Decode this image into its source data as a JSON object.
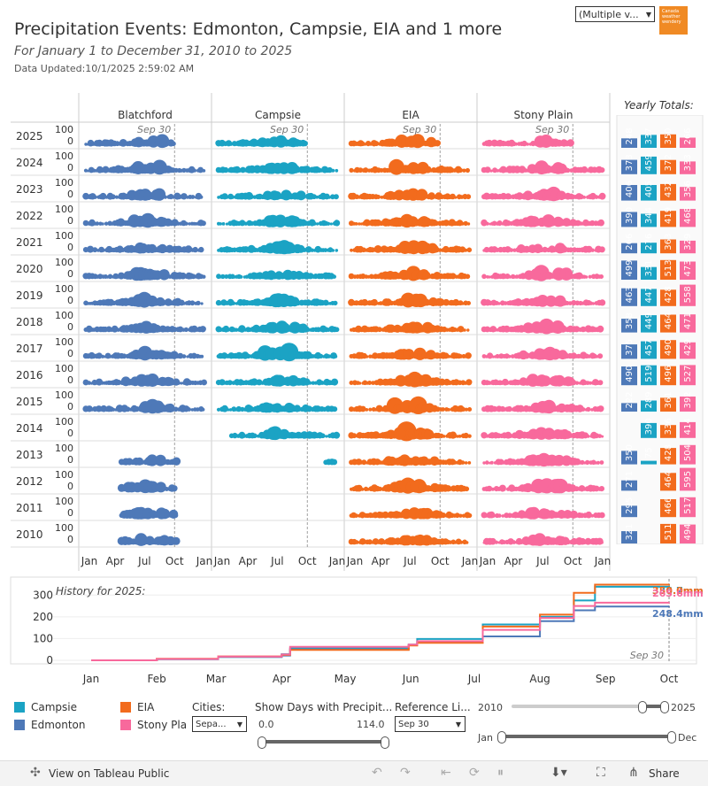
{
  "header": {
    "title": "Precipitation Events: Edmonton, Campsie, EIA and 1 more",
    "subtitle": "For January 1 to December 31, 2010 to 2025",
    "updated": "Data Updated:10/1/2025 2:59:02 AM",
    "city_filter_value": "(Multiple v...",
    "logo_text": "Canada weather wendery"
  },
  "colors": {
    "Blatchford": "#4e79b8",
    "Campsie": "#1ba3c4",
    "EIA": "#f26b1d",
    "Stony Plain": "#f8699c"
  },
  "chart_data": [
    {
      "type": "scatter",
      "panels": [
        "Blatchford",
        "Campsie",
        "EIA",
        "Stony Plain"
      ],
      "years": [
        2025,
        2024,
        2023,
        2022,
        2021,
        2020,
        2019,
        2018,
        2017,
        2016,
        2015,
        2014,
        2013,
        2012,
        2011,
        2010
      ],
      "y_ticks": [
        "100",
        "0"
      ],
      "x_ticks": [
        "Jan",
        "Apr",
        "Jul",
        "Oct",
        "Jan"
      ],
      "reference_line_label": "Sep 30",
      "reference_line_day": 273,
      "note": "bubble per precipitation event; size ~ event precipitation"
    },
    {
      "type": "table",
      "title": "Yearly Totals:",
      "columns": [
        "Blatchford",
        "Campsie",
        "EIA",
        "Stony Plain"
      ],
      "rows": [
        {
          "year": 2025,
          "values": [
            248,
            337,
            350,
            266
          ]
        },
        {
          "year": 2024,
          "values": [
            373,
            459,
            372,
            333
          ]
        },
        {
          "year": 2023,
          "values": [
            406,
            405,
            432,
            356
          ]
        },
        {
          "year": 2022,
          "values": [
            390,
            344,
            419,
            468
          ]
        },
        {
          "year": 2021,
          "values": [
            266,
            276,
            363,
            329
          ]
        },
        {
          "year": 2020,
          "values": [
            499,
            331,
            513,
            473
          ]
        },
        {
          "year": 2019,
          "values": [
            463,
            447,
            428,
            558
          ]
        },
        {
          "year": 2018,
          "values": [
            358,
            449,
            464,
            471
          ]
        },
        {
          "year": 2017,
          "values": [
            375,
            457,
            490,
            429
          ]
        },
        {
          "year": 2016,
          "values": [
            490,
            519,
            496,
            527
          ]
        },
        {
          "year": 2015,
          "values": [
            222,
            289,
            361,
            392
          ]
        },
        {
          "year": 2014,
          "values": [
            null,
            390,
            336,
            414
          ]
        },
        {
          "year": 2013,
          "values": [
            350,
            75,
            428,
            504
          ]
        },
        {
          "year": 2012,
          "values": [
            271,
            null,
            464,
            595
          ]
        },
        {
          "year": 2011,
          "values": [
            295,
            null,
            466,
            517
          ]
        },
        {
          "year": 2010,
          "values": [
            321,
            null,
            511,
            494
          ]
        }
      ]
    },
    {
      "type": "line",
      "title": "History for 2025:",
      "x_ticks": [
        "Jan",
        "Feb",
        "Mar",
        "Apr",
        "May",
        "Jun",
        "Jul",
        "Aug",
        "Sep",
        "Oct"
      ],
      "y_ticks": [
        0,
        100,
        200,
        300
      ],
      "ylim": [
        0,
        350
      ],
      "reference_line_label": "Sep 30",
      "end_labels": [
        "336.7mm",
        "350.0mm",
        "265.6mm",
        "248.4mm"
      ],
      "series": [
        {
          "name": "Campsie",
          "points": [
            [
              0,
              0
            ],
            [
              31,
              6
            ],
            [
              60,
              15
            ],
            [
              90,
              28
            ],
            [
              94,
              55
            ],
            [
              150,
              72
            ],
            [
              154,
              98
            ],
            [
              185,
              165
            ],
            [
              212,
              200
            ],
            [
              228,
              275
            ],
            [
              238,
              338
            ],
            [
              273,
              337
            ]
          ]
        },
        {
          "name": "Edmonton",
          "points": [
            [
              0,
              0
            ],
            [
              31,
              5
            ],
            [
              60,
              16
            ],
            [
              90,
              22
            ],
            [
              94,
              50
            ],
            [
              150,
              70
            ],
            [
              154,
              85
            ],
            [
              185,
              110
            ],
            [
              212,
              180
            ],
            [
              228,
              230
            ],
            [
              238,
              247
            ],
            [
              273,
              248
            ]
          ]
        },
        {
          "name": "EIA",
          "points": [
            [
              0,
              0
            ],
            [
              31,
              7
            ],
            [
              60,
              18
            ],
            [
              90,
              25
            ],
            [
              94,
              48
            ],
            [
              150,
              68
            ],
            [
              154,
              80
            ],
            [
              185,
              155
            ],
            [
              212,
              210
            ],
            [
              228,
              310
            ],
            [
              238,
              348
            ],
            [
              273,
              350
            ]
          ]
        },
        {
          "name": "Stony Plain",
          "points": [
            [
              0,
              0
            ],
            [
              31,
              6
            ],
            [
              60,
              17
            ],
            [
              90,
              27
            ],
            [
              94,
              62
            ],
            [
              150,
              72
            ],
            [
              154,
              88
            ],
            [
              185,
              140
            ],
            [
              212,
              195
            ],
            [
              228,
              250
            ],
            [
              238,
              265
            ],
            [
              273,
              266
            ]
          ]
        }
      ]
    }
  ],
  "legend": {
    "items": [
      {
        "label": "Campsie",
        "color": "#1ba3c4"
      },
      {
        "label": "EIA",
        "color": "#f26b1d"
      },
      {
        "label": "Edmonton",
        "color": "#4e79b8"
      },
      {
        "label": "Stony Pla",
        "color": "#f8699c"
      }
    ]
  },
  "controls": {
    "cities_label": "Cities:",
    "cities_value": "Sepa...",
    "show_days_label": "Show Days with Precipit...",
    "show_days_min": "0.0",
    "show_days_max": "114.0",
    "ref_label": "Reference Li...",
    "ref_value": "Sep 30",
    "year_min": "2010",
    "year_max": "2025",
    "month_min": "Jan",
    "month_max": "Dec"
  },
  "footer": {
    "view_label": "View on Tableau Public",
    "share_label": "Share"
  }
}
